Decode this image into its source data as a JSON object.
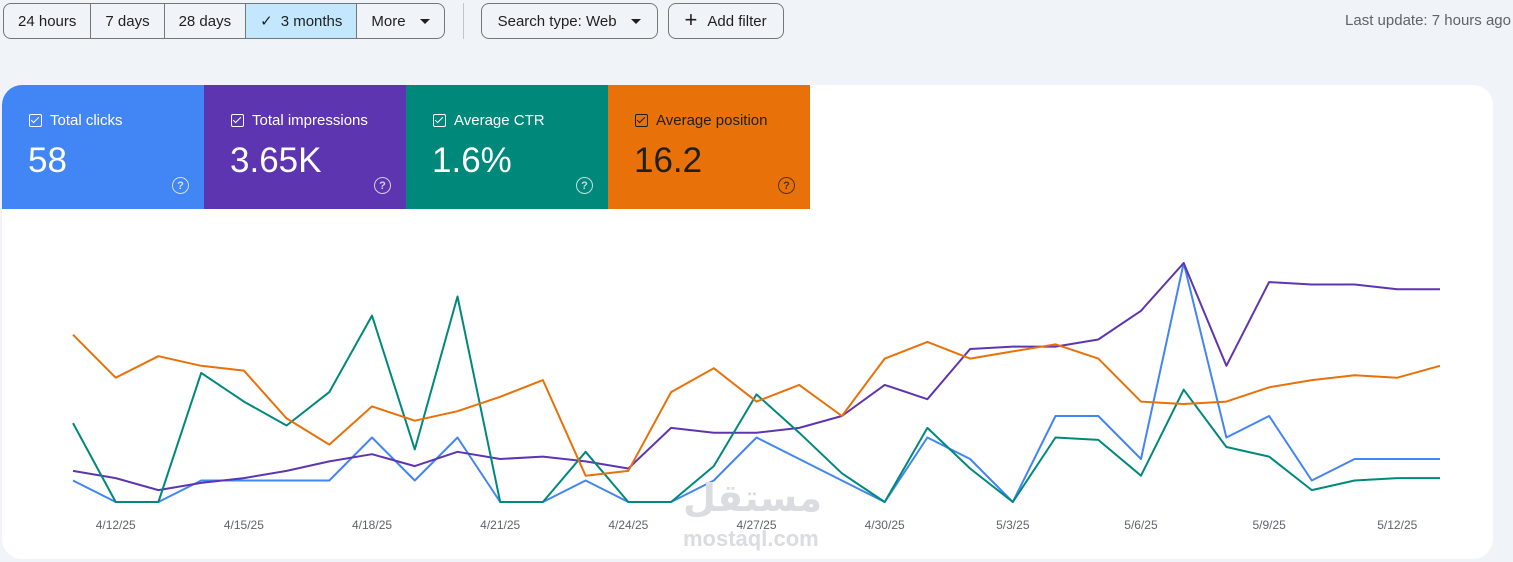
{
  "toolbar": {
    "ranges": [
      "24 hours",
      "7 days",
      "28 days",
      "3 months"
    ],
    "active_range": "3 months",
    "more_label": "More",
    "search_type_label": "Search type: Web",
    "add_filter_label": "Add filter",
    "last_update": "Last update: 7 hours ago"
  },
  "metrics": [
    {
      "label": "Total clicks",
      "value": "58",
      "color": "#4285f4"
    },
    {
      "label": "Total impressions",
      "value": "3.65K",
      "color": "#5e35b1"
    },
    {
      "label": "Average CTR",
      "value": "1.6%",
      "color": "#00897b"
    },
    {
      "label": "Average position",
      "value": "16.2",
      "color": "#e8710a"
    }
  ],
  "watermark": {
    "arabic": "مستقل",
    "latin": "mostaql.com"
  },
  "chart_data": {
    "type": "line",
    "x": [
      "4/11/25",
      "4/12/25",
      "4/13/25",
      "4/14/25",
      "4/15/25",
      "4/16/25",
      "4/17/25",
      "4/18/25",
      "4/19/25",
      "4/20/25",
      "4/21/25",
      "4/22/25",
      "4/23/25",
      "4/24/25",
      "4/25/25",
      "4/26/25",
      "4/27/25",
      "4/28/25",
      "4/29/25",
      "4/30/25",
      "5/1/25",
      "5/2/25",
      "5/3/25",
      "5/4/25",
      "5/5/25",
      "5/6/25",
      "5/7/25",
      "5/8/25",
      "5/9/25",
      "5/10/25",
      "5/11/25",
      "5/12/25",
      "5/13/25"
    ],
    "tick_labels": [
      "4/12/25",
      "4/15/25",
      "4/18/25",
      "4/21/25",
      "4/24/25",
      "4/27/25",
      "4/30/25",
      "5/3/25",
      "5/6/25",
      "5/9/25",
      "5/12/25"
    ],
    "ylim": [
      0,
      100
    ],
    "series": [
      {
        "name": "Total clicks",
        "color": "#4285f4",
        "values": [
          9,
          0,
          0,
          9,
          9,
          9,
          9,
          27,
          9,
          27,
          0,
          0,
          9,
          0,
          0,
          9,
          27,
          18,
          9,
          0,
          27,
          18,
          0,
          36,
          36,
          18,
          100,
          27,
          36,
          9,
          18,
          18,
          18
        ]
      },
      {
        "name": "Total impressions",
        "color": "#5e35b1",
        "values": [
          13,
          10,
          5,
          8,
          10,
          13,
          17,
          20,
          15,
          21,
          18,
          19,
          17,
          14,
          31,
          29,
          29,
          31,
          36,
          49,
          43,
          64,
          65,
          65,
          68,
          80,
          100,
          57,
          92,
          91,
          91,
          89,
          89
        ]
      },
      {
        "name": "Average CTR",
        "color": "#00897b",
        "values": [
          33,
          0,
          0,
          54,
          42,
          32,
          46,
          78,
          22,
          86,
          0,
          0,
          21,
          0,
          0,
          15,
          45,
          29,
          12,
          0,
          31,
          14,
          0,
          27,
          26,
          11,
          47,
          23,
          19,
          5,
          9,
          10,
          10
        ]
      },
      {
        "name": "Average position",
        "color": "#e8710a",
        "values": [
          70,
          52,
          61,
          57,
          55,
          35,
          24,
          40,
          34,
          38,
          44,
          51,
          11,
          13,
          46,
          56,
          42,
          49,
          36,
          60,
          67,
          60,
          63,
          66,
          60,
          42,
          41,
          42,
          48,
          51,
          53,
          52,
          57
        ]
      }
    ]
  }
}
